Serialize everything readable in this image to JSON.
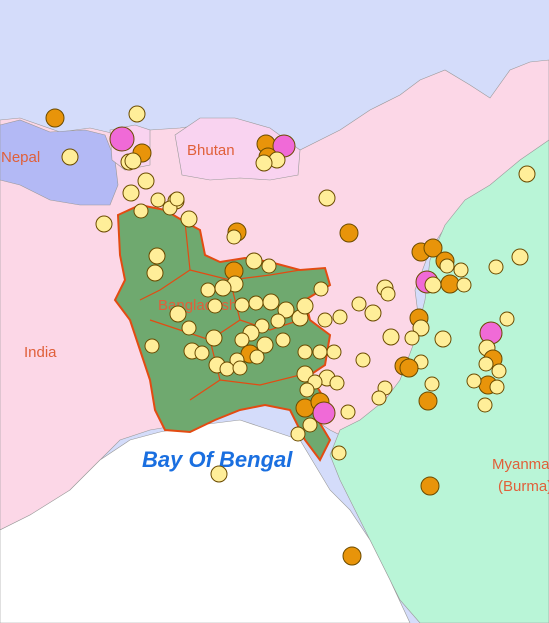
{
  "labels": {
    "nepal": "Nepal",
    "bhutan": "Bhutan",
    "india": "India",
    "bangladesh": "Bangladesh",
    "myanmar_line1": "Myanmar",
    "myanmar_line2": "(Burma)",
    "bay": "Bay Of Bengal"
  },
  "colors": {
    "china": "#d4dcfa",
    "nepal": "#b3b9f5",
    "india": "#fcd7e7",
    "bhutan": "#f9d3f0",
    "myanmar": "#b9f5d7",
    "bangladesh": "#6fa96f",
    "bangladesh_border": "#e34b12",
    "sea": "#ffffff",
    "marker_yellow": "#ffee99",
    "marker_orange": "#e8940a",
    "marker_pink": "#f06ad7"
  },
  "marker_categories": [
    "small",
    "medium",
    "large"
  ]
}
